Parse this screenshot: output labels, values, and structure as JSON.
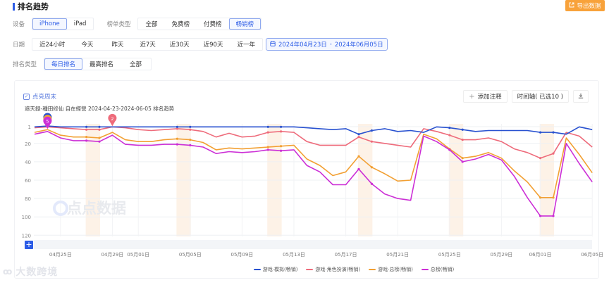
{
  "header": {
    "title": "排名趋势",
    "export_label": "导出数据"
  },
  "filters": {
    "device": {
      "label": "设备",
      "options": [
        "iPhone",
        "iPad"
      ],
      "selected": "iPhone"
    },
    "list_type": {
      "label": "榜单类型",
      "options": [
        "全部",
        "免费榜",
        "付费榜",
        "畅销榜"
      ],
      "selected": "畅销榜"
    },
    "date": {
      "label": "日期",
      "options": [
        "近24小时",
        "今天",
        "昨天",
        "近7天",
        "近30天",
        "近90天",
        "近一年"
      ],
      "range_start": "2024年04月23日",
      "range_sep": "-",
      "range_end": "2024年06月05日"
    },
    "rank_type": {
      "label": "排名类型",
      "options": [
        "每日排名",
        "最高排名",
        "全部"
      ],
      "selected": "每日排名"
    }
  },
  "chart_panel": {
    "weekend_toggle_label": "点亮周末",
    "add_note_label": "添加注释",
    "timeline_label": "时间轴( 已选10 )",
    "watermark": "点点数据",
    "footer_watermark": "大数跨境"
  },
  "chart_data": {
    "type": "line",
    "title": "遮天録-種田修仙 自在經營 2024-04-23-2024-06-05 排名趋势",
    "xlabel": "",
    "ylabel": "",
    "y_inverted": true,
    "ylim": [
      1,
      120
    ],
    "yticks": [
      "1",
      "20",
      "40",
      "60",
      "80",
      "100",
      "120"
    ],
    "xticks": [
      "04月25日",
      "04月29日",
      "05月01日",
      "05月05日",
      "05月09日",
      "05月13日",
      "05月17日",
      "05月21日",
      "05月25日",
      "05月29日",
      "06月01日",
      "06月05日"
    ],
    "grid": true,
    "legend_position": "bottom",
    "weekend_highlight": true,
    "x": [
      "04-23",
      "04-24",
      "04-25",
      "04-26",
      "04-27",
      "04-28",
      "04-29",
      "04-30",
      "05-01",
      "05-02",
      "05-03",
      "05-04",
      "05-05",
      "05-06",
      "05-07",
      "05-08",
      "05-09",
      "05-10",
      "05-11",
      "05-12",
      "05-13",
      "05-14",
      "05-15",
      "05-16",
      "05-17",
      "05-18",
      "05-19",
      "05-20",
      "05-21",
      "05-22",
      "05-23",
      "05-24",
      "05-25",
      "05-26",
      "05-27",
      "05-28",
      "05-29",
      "05-30",
      "05-31",
      "06-01",
      "06-02",
      "06-03",
      "06-04",
      "06-05"
    ],
    "series": [
      {
        "name": "游戏·模拟(畅销)",
        "color": "#2851d0",
        "values": [
          2,
          1,
          2,
          2,
          2,
          2,
          2,
          2,
          2,
          2,
          2,
          2,
          2,
          2,
          2,
          2,
          2,
          2,
          2,
          2,
          2,
          3,
          4,
          5,
          4,
          10,
          6,
          4,
          7,
          6,
          8,
          2,
          3,
          5,
          7,
          6,
          6,
          6,
          6,
          8,
          8,
          10,
          2,
          5
        ]
      },
      {
        "name": "游戏·角色扮演(畅销)",
        "color": "#ee6b7b",
        "values": [
          3,
          2,
          3,
          4,
          5,
          5,
          2,
          3,
          5,
          6,
          5,
          4,
          5,
          7,
          13,
          9,
          13,
          12,
          8,
          7,
          8,
          18,
          22,
          22,
          22,
          13,
          18,
          20,
          22,
          24,
          4,
          7,
          11,
          16,
          16,
          14,
          18,
          26,
          30,
          36,
          31,
          8,
          12,
          24
        ]
      },
      {
        "name": "游戏·总榜(畅销)",
        "color": "#f2a033",
        "values": [
          8,
          5,
          11,
          13,
          13,
          14,
          8,
          16,
          18,
          18,
          16,
          15,
          16,
          19,
          27,
          25,
          26,
          25,
          24,
          23,
          22,
          37,
          44,
          55,
          51,
          34,
          46,
          53,
          61,
          60,
          10,
          15,
          26,
          36,
          34,
          30,
          36,
          50,
          62,
          79,
          79,
          14,
          32,
          52
        ]
      },
      {
        "name": "总榜(畅销)",
        "color": "#cc2fd6",
        "values": [
          10,
          7,
          14,
          17,
          17,
          18,
          11,
          21,
          22,
          22,
          21,
          21,
          22,
          24,
          31,
          29,
          30,
          29,
          27,
          28,
          27,
          44,
          51,
          65,
          65,
          48,
          64,
          75,
          80,
          82,
          12,
          18,
          27,
          40,
          37,
          32,
          38,
          56,
          79,
          99,
          99,
          20,
          42,
          62
        ]
      }
    ]
  }
}
